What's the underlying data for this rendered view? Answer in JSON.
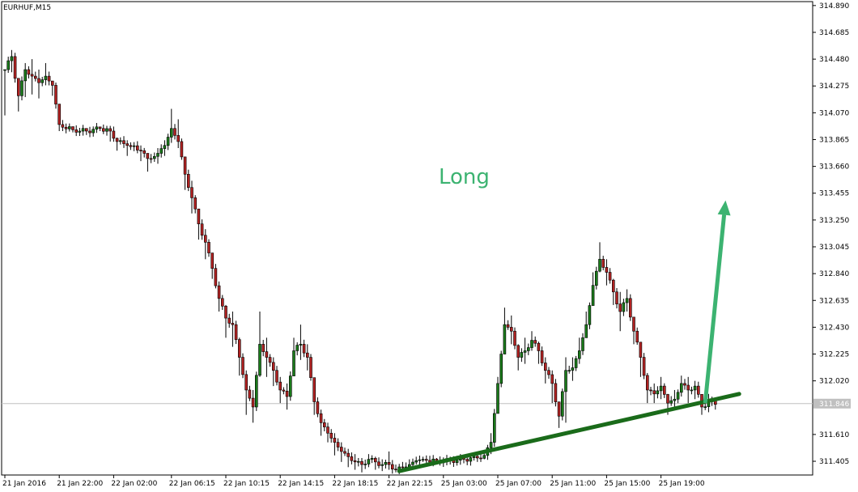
{
  "chart_data": {
    "type": "candlestick",
    "symbol_label": "EURHUF,M15",
    "current_price": 311.846,
    "current_price_label": "311.846",
    "ylim": [
      311.3,
      314.92
    ],
    "y_ticks": [
      "314.890",
      "314.685",
      "314.480",
      "314.275",
      "314.070",
      "313.865",
      "313.660",
      "313.455",
      "313.250",
      "313.045",
      "312.840",
      "312.635",
      "312.430",
      "312.225",
      "312.020",
      "311.610",
      "311.405"
    ],
    "x_ticks": [
      {
        "label": "21 Jan 2016",
        "bar": 0
      },
      {
        "label": "21 Jan 22:00",
        "bar": 16
      },
      {
        "label": "22 Jan 02:00",
        "bar": 32
      },
      {
        "label": "22 Jan 06:15",
        "bar": 49
      },
      {
        "label": "22 Jan 10:15",
        "bar": 65
      },
      {
        "label": "22 Jan 14:15",
        "bar": 81
      },
      {
        "label": "22 Jan 18:15",
        "bar": 97
      },
      {
        "label": "22 Jan 22:15",
        "bar": 113
      },
      {
        "label": "25 Jan 03:00",
        "bar": 129
      },
      {
        "label": "25 Jan 07:00",
        "bar": 145
      },
      {
        "label": "25 Jan 11:00",
        "bar": 161
      },
      {
        "label": "25 Jan 15:00",
        "bar": 177
      },
      {
        "label": "25 Jan 19:00",
        "bar": 193
      }
    ],
    "annotation": {
      "text": "Long",
      "color": "#3cb371"
    },
    "trendline": {
      "color": "#1a6b1a",
      "bar_start": 116,
      "price_start": 311.33,
      "bar_end": 216,
      "price_end": 311.92
    },
    "arrow": {
      "color": "#3cb371",
      "bar_start": 206,
      "price_start": 311.85,
      "bar_end": 212,
      "price_end": 313.4
    },
    "colors": {
      "bull": "#1a7a1a",
      "bear": "#b22222",
      "frame": "#000000",
      "price_line": "#c0c0c0",
      "price_tag": "#c0c0c0"
    },
    "anchors": [
      [
        0,
        314.4,
        314.3,
        314.05
      ],
      [
        2,
        314.5,
        314.55,
        314.38
      ],
      [
        4,
        314.2,
        314.25,
        314.08
      ],
      [
        6,
        314.4,
        314.45,
        314.19
      ],
      [
        8,
        314.35,
        314.48,
        314.21
      ],
      [
        10,
        314.3,
        314.4,
        314.18
      ],
      [
        12,
        314.35,
        314.45,
        314.28
      ],
      [
        14,
        314.28,
        314.3,
        314.2
      ],
      [
        16,
        313.98,
        314.0,
        313.93
      ],
      [
        20,
        313.94,
        313.96,
        313.92
      ],
      [
        24,
        313.93,
        313.95,
        313.9
      ],
      [
        28,
        313.95,
        313.96,
        313.93
      ],
      [
        31,
        313.93,
        313.97,
        313.85
      ],
      [
        33,
        313.85,
        313.88,
        313.78
      ],
      [
        36,
        313.82,
        313.86,
        313.74
      ],
      [
        40,
        313.78,
        313.82,
        313.7
      ],
      [
        42,
        313.72,
        313.76,
        313.62
      ],
      [
        45,
        313.76,
        313.8,
        313.68
      ],
      [
        47,
        313.82,
        313.86,
        313.74
      ],
      [
        49,
        313.95,
        314.1,
        313.84
      ],
      [
        51,
        313.85,
        314.02,
        313.8
      ],
      [
        53,
        313.6,
        313.72,
        313.48
      ],
      [
        55,
        313.42,
        313.55,
        313.3
      ],
      [
        57,
        313.22,
        313.3,
        313.1
      ],
      [
        59,
        313.08,
        313.18,
        312.95
      ],
      [
        61,
        312.88,
        312.98,
        312.8
      ],
      [
        63,
        312.65,
        312.78,
        312.55
      ],
      [
        65,
        312.5,
        312.6,
        312.35
      ],
      [
        67,
        312.45,
        312.55,
        312.28
      ],
      [
        69,
        312.2,
        312.35,
        312.06
      ],
      [
        71,
        311.95,
        312.1,
        311.76
      ],
      [
        73,
        311.82,
        311.95,
        311.7
      ],
      [
        75,
        312.3,
        312.55,
        312.05
      ],
      [
        77,
        312.2,
        312.35,
        312.05
      ],
      [
        79,
        312.1,
        312.2,
        311.98
      ],
      [
        81,
        311.95,
        312.05,
        311.85
      ],
      [
        83,
        311.9,
        312.0,
        311.8
      ],
      [
        85,
        312.25,
        312.35,
        312.15
      ],
      [
        87,
        312.3,
        312.45,
        312.18
      ],
      [
        89,
        312.2,
        312.3,
        312.1
      ],
      [
        91,
        311.86,
        311.95,
        311.76
      ],
      [
        93,
        311.7,
        311.8,
        311.6
      ],
      [
        95,
        311.62,
        311.7,
        311.55
      ],
      [
        97,
        311.55,
        311.62,
        311.45
      ],
      [
        99,
        311.48,
        311.55,
        311.4
      ],
      [
        101,
        311.44,
        311.5,
        311.36
      ],
      [
        103,
        311.4,
        311.46,
        311.34
      ],
      [
        105,
        311.38,
        311.43,
        311.32
      ],
      [
        107,
        311.42,
        311.46,
        311.36
      ],
      [
        109,
        311.4,
        311.44,
        311.34
      ],
      [
        111,
        311.38,
        311.42,
        311.33
      ],
      [
        113,
        311.38,
        311.48,
        311.34
      ],
      [
        115,
        311.34,
        311.38,
        311.32
      ],
      [
        117,
        311.36,
        311.4,
        311.33
      ],
      [
        119,
        311.38,
        311.42,
        311.35
      ],
      [
        121,
        311.41,
        311.44,
        311.38
      ],
      [
        123,
        311.42,
        311.44,
        311.4
      ],
      [
        127,
        311.41,
        311.43,
        311.39
      ],
      [
        131,
        311.41,
        311.44,
        311.38
      ],
      [
        135,
        311.42,
        311.45,
        311.39
      ],
      [
        139,
        311.43,
        311.46,
        311.4
      ],
      [
        141,
        311.45,
        311.48,
        311.42
      ],
      [
        143,
        311.55,
        311.62,
        311.46
      ],
      [
        145,
        312.0,
        312.05,
        311.8
      ],
      [
        147,
        312.45,
        312.58,
        312.35
      ],
      [
        149,
        312.4,
        312.52,
        312.3
      ],
      [
        151,
        312.2,
        312.3,
        312.1
      ],
      [
        153,
        312.25,
        312.35,
        312.15
      ],
      [
        155,
        312.33,
        312.4,
        312.25
      ],
      [
        157,
        312.25,
        312.32,
        312.15
      ],
      [
        159,
        312.1,
        312.2,
        312.0
      ],
      [
        161,
        312.0,
        312.1,
        311.85
      ],
      [
        163,
        311.75,
        311.85,
        311.66
      ],
      [
        165,
        312.1,
        312.2,
        311.7
      ],
      [
        167,
        312.12,
        312.2,
        312.02
      ],
      [
        169,
        312.25,
        312.35,
        312.15
      ],
      [
        171,
        312.45,
        312.55,
        312.35
      ],
      [
        173,
        312.75,
        312.85,
        312.6
      ],
      [
        175,
        312.95,
        313.08,
        312.85
      ],
      [
        177,
        312.85,
        312.95,
        312.75
      ],
      [
        179,
        312.7,
        312.8,
        312.6
      ],
      [
        181,
        312.55,
        312.7,
        312.4
      ],
      [
        183,
        312.65,
        312.72,
        312.55
      ],
      [
        185,
        312.4,
        312.5,
        312.3
      ],
      [
        187,
        312.2,
        312.3,
        312.05
      ],
      [
        189,
        311.95,
        312.08,
        311.85
      ],
      [
        191,
        311.92,
        312.0,
        311.85
      ],
      [
        193,
        311.98,
        312.05,
        311.88
      ],
      [
        195,
        311.85,
        311.92,
        311.76
      ],
      [
        197,
        311.88,
        311.95,
        311.8
      ],
      [
        199,
        312.0,
        312.06,
        311.9
      ],
      [
        201,
        311.95,
        312.05,
        311.85
      ],
      [
        203,
        311.98,
        312.02,
        311.88
      ],
      [
        205,
        311.82,
        311.88,
        311.76
      ],
      [
        207,
        311.86,
        311.92,
        311.78
      ],
      [
        209,
        311.84,
        311.88,
        311.8
      ]
    ]
  }
}
